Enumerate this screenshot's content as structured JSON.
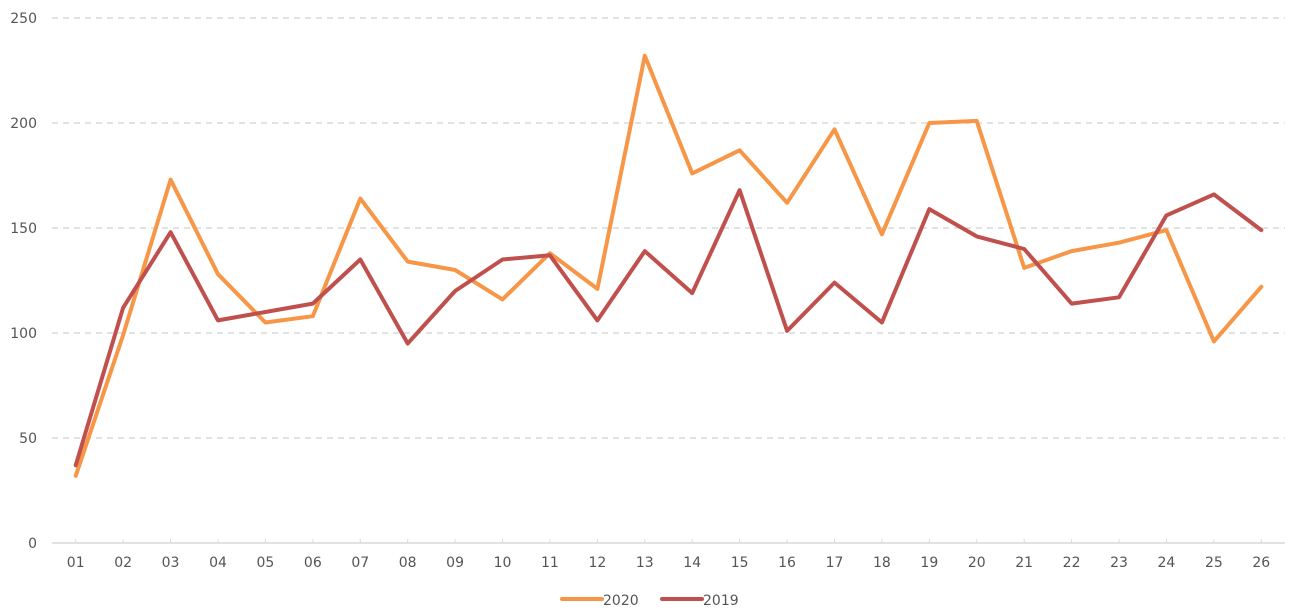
{
  "chart_data": {
    "type": "line",
    "title": "",
    "xlabel": "",
    "ylabel": "",
    "ylim": [
      0,
      250
    ],
    "yticks": [
      0,
      50,
      100,
      150,
      200,
      250
    ],
    "grid": true,
    "legend_position": "bottom",
    "categories": [
      "01",
      "02",
      "03",
      "04",
      "05",
      "06",
      "07",
      "08",
      "09",
      "10",
      "11",
      "12",
      "13",
      "14",
      "15",
      "16",
      "17",
      "18",
      "19",
      "20",
      "21",
      "22",
      "23",
      "24",
      "25",
      "26"
    ],
    "series": [
      {
        "name": "2020",
        "color": "#F79646",
        "values": [
          32,
          99,
          173,
          128,
          105,
          108,
          164,
          134,
          130,
          116,
          138,
          121,
          232,
          176,
          187,
          162,
          197,
          147,
          200,
          201,
          131,
          139,
          143,
          149,
          96,
          122
        ]
      },
      {
        "name": "2019",
        "color": "#C0504D",
        "values": [
          37,
          112,
          148,
          106,
          110,
          114,
          135,
          95,
          120,
          135,
          137,
          106,
          139,
          119,
          168,
          101,
          124,
          105,
          159,
          146,
          140,
          114,
          117,
          156,
          166,
          149
        ]
      }
    ]
  },
  "colors": {
    "grid": "#D9D9D9",
    "axis": "#D9D9D9",
    "text": "#595959"
  }
}
